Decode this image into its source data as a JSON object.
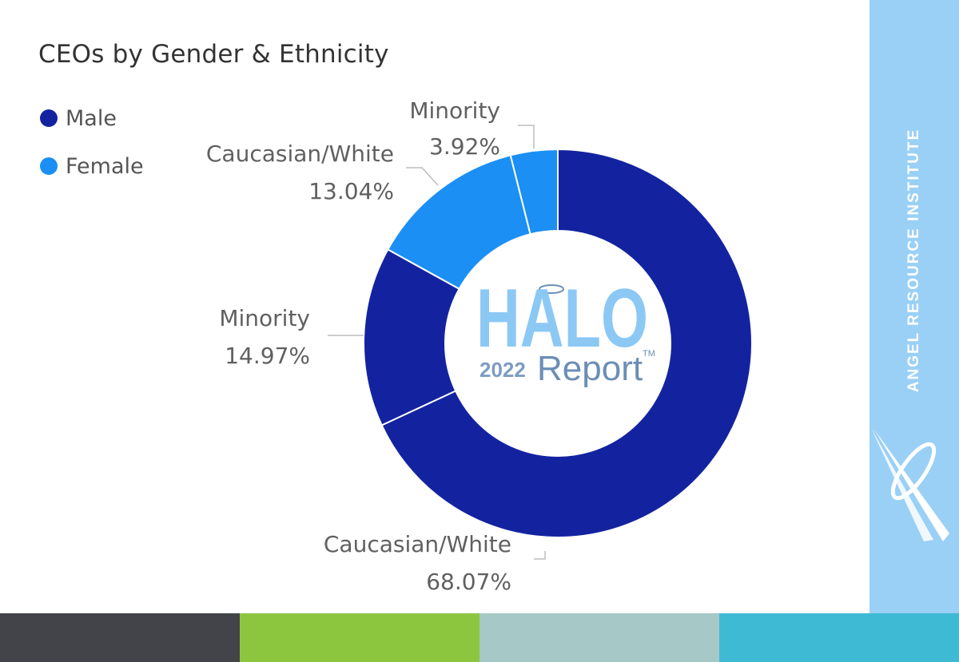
{
  "chart_data": {
    "type": "donut",
    "title": "CEOs by Gender & Ethnicity",
    "legend": [
      {
        "name": "Male",
        "color": "#1323a0"
      },
      {
        "name": "Female",
        "color": "#1b8ff4"
      }
    ],
    "slices": [
      {
        "group": "Male",
        "label": "Caucasian/White",
        "value": 68.07,
        "display": "68.07%",
        "color": "#1323a0"
      },
      {
        "group": "Male",
        "label": "Minority",
        "value": 14.97,
        "display": "14.97%",
        "color": "#1323a0"
      },
      {
        "group": "Female",
        "label": "Caucasian/White",
        "value": 13.04,
        "display": "13.04%",
        "color": "#1b8ff4"
      },
      {
        "group": "Female",
        "label": "Minority",
        "value": 3.92,
        "display": "3.92%",
        "color": "#1b8ff4"
      }
    ],
    "legend_position": "top-left"
  },
  "logo": {
    "halo": "HALO",
    "year": "2022",
    "report": "Report",
    "tm": "TM"
  },
  "sidebar": {
    "text": "ANGEL RESOURCE INSTITUTE",
    "color": "#9ad0f6"
  },
  "footer_colors": [
    "#434449",
    "#8cc63f",
    "#a6c8c7",
    "#3fbad4"
  ]
}
